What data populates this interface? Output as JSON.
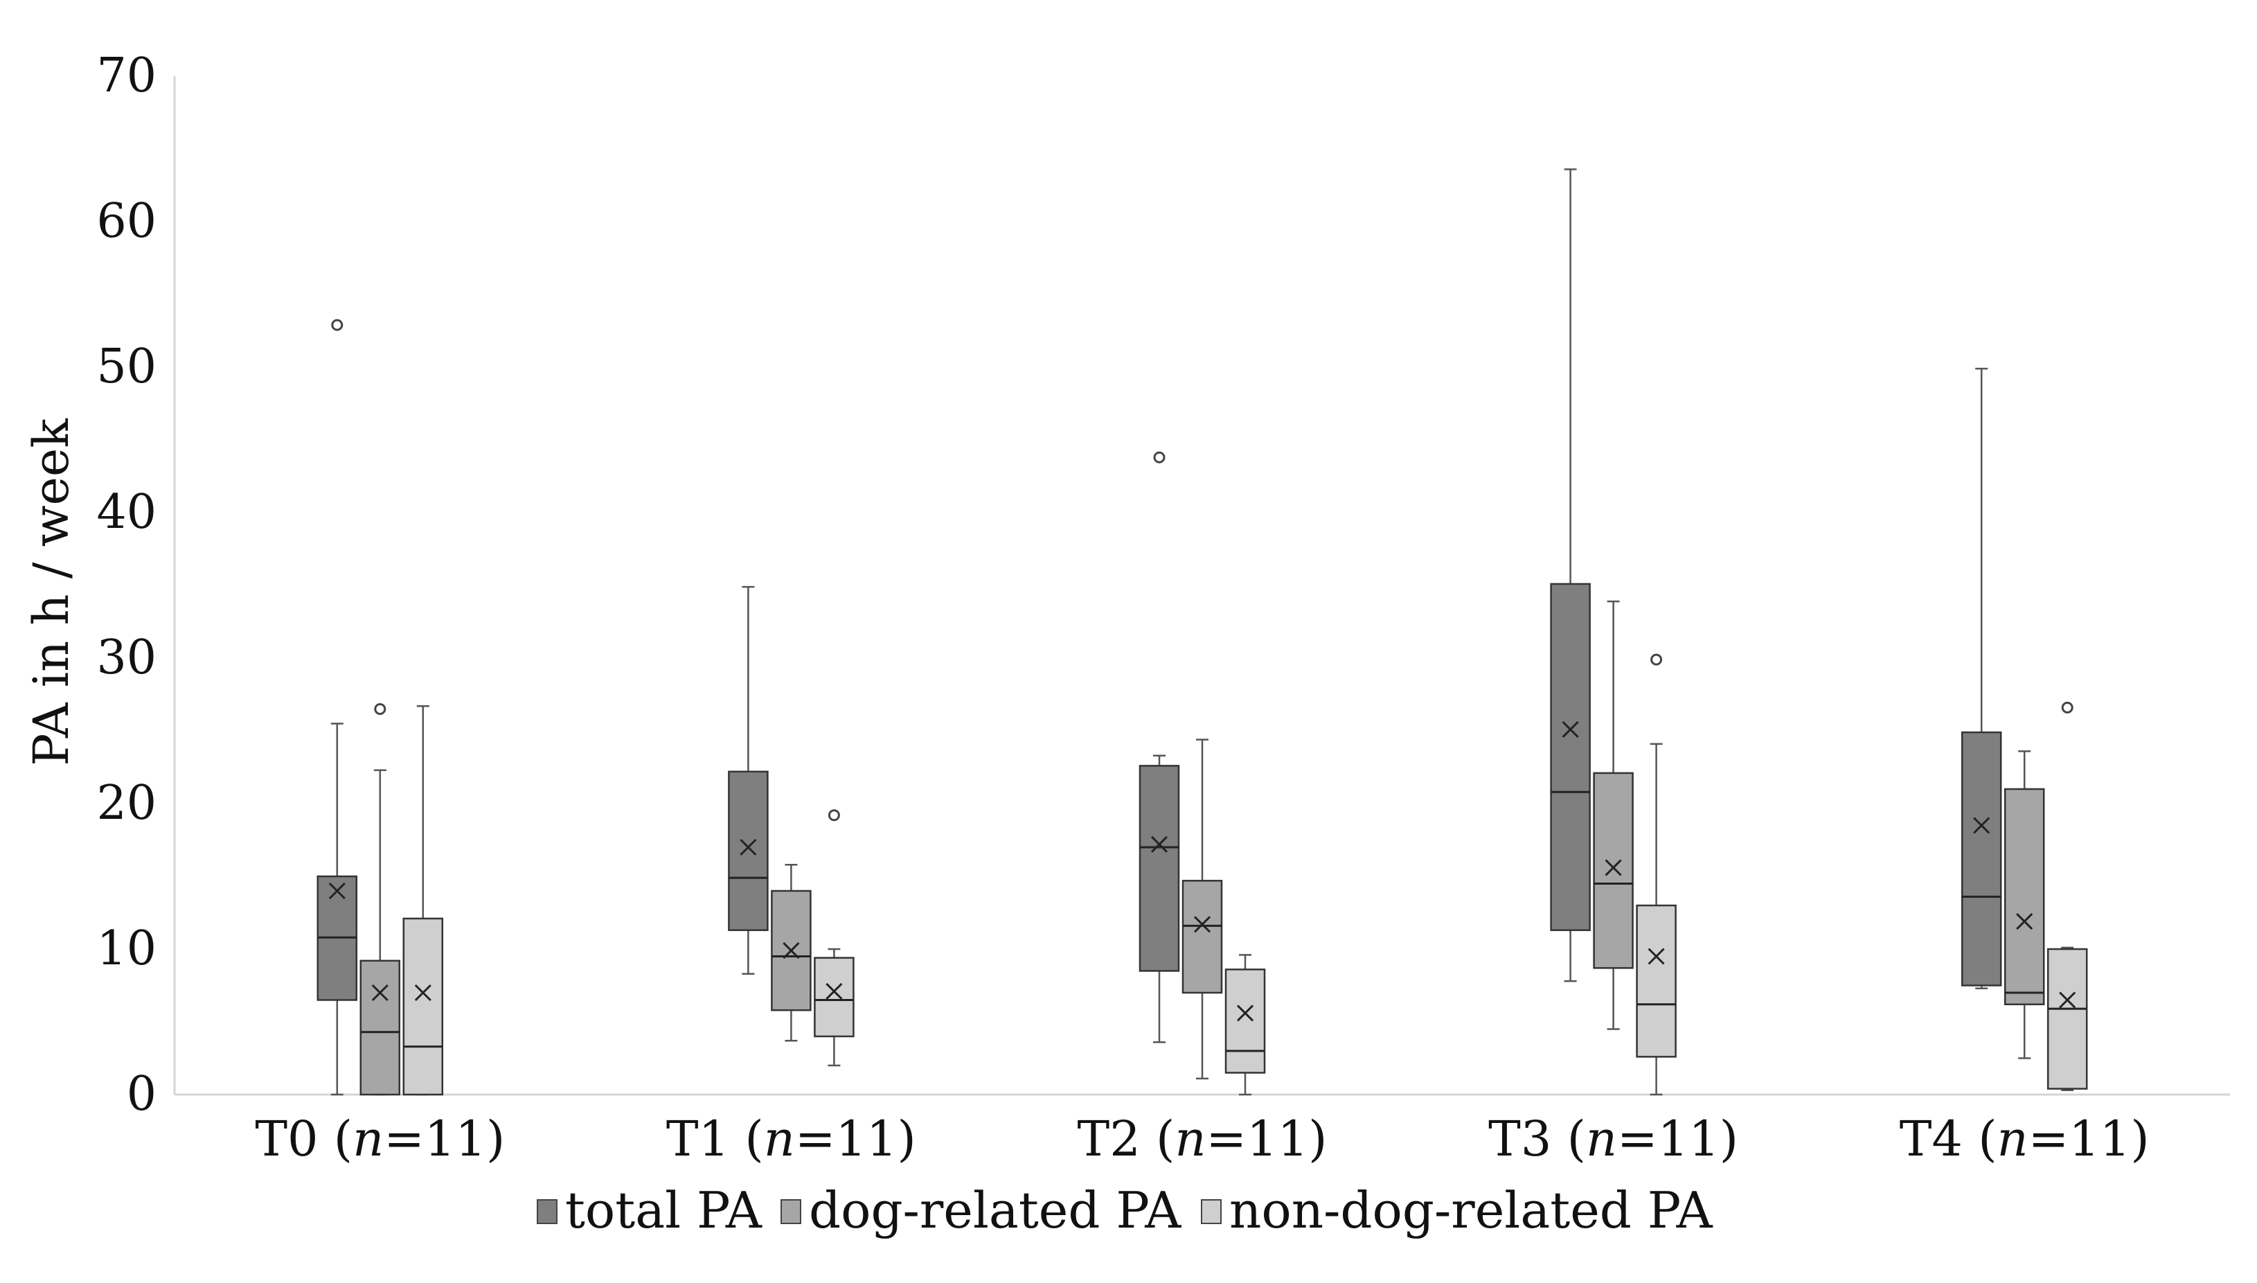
{
  "chart_data": {
    "type": "boxplot",
    "title": "",
    "ylabel": "PA in h / week",
    "xlabel": "",
    "ylim": [
      0,
      70
    ],
    "yticks": [
      0,
      10,
      20,
      30,
      40,
      50,
      60,
      70
    ],
    "grid": false,
    "legend_position": "bottom",
    "categories": [
      {
        "time": "T0",
        "n_label": "n",
        "n_value": "=11)"
      },
      {
        "time": "T1",
        "n_label": "n",
        "n_value": "=11)"
      },
      {
        "time": "T2",
        "n_label": "n",
        "n_value": "=11)"
      },
      {
        "time": "T3",
        "n_label": "n",
        "n_value": "=11)"
      },
      {
        "time": "T4",
        "n_label": "n",
        "n_value": "=11)"
      }
    ],
    "series": [
      {
        "name": "total PA",
        "color": "#7f7f7f",
        "stats": [
          {
            "min": 0,
            "q1": 6.5,
            "median": 10.8,
            "q3": 15.0,
            "max": 25.5,
            "mean": 14.0,
            "outliers": [
              52.9
            ]
          },
          {
            "min": 8.3,
            "q1": 11.3,
            "median": 14.9,
            "q3": 22.2,
            "max": 34.9,
            "mean": 17.0,
            "outliers": []
          },
          {
            "min": 3.6,
            "q1": 8.5,
            "median": 17.0,
            "q3": 22.6,
            "max": 23.3,
            "mean": 17.2,
            "outliers": [
              43.8
            ]
          },
          {
            "min": 7.8,
            "q1": 11.3,
            "median": 20.8,
            "q3": 35.1,
            "max": 63.6,
            "mean": 25.1,
            "outliers": []
          },
          {
            "min": 7.3,
            "q1": 7.5,
            "median": 13.6,
            "q3": 24.9,
            "max": 49.9,
            "mean": 18.5,
            "outliers": []
          }
        ]
      },
      {
        "name": "dog-related PA",
        "color": "#a6a6a6",
        "stats": [
          {
            "min": 0,
            "q1": 0,
            "median": 4.3,
            "q3": 9.2,
            "max": 22.3,
            "mean": 7.0,
            "outliers": [
              26.5
            ]
          },
          {
            "min": 3.7,
            "q1": 5.8,
            "median": 9.5,
            "q3": 14.0,
            "max": 15.8,
            "mean": 9.9,
            "outliers": []
          },
          {
            "min": 1.1,
            "q1": 7.0,
            "median": 11.6,
            "q3": 14.7,
            "max": 24.4,
            "mean": 11.7,
            "outliers": []
          },
          {
            "min": 4.5,
            "q1": 8.7,
            "median": 14.5,
            "q3": 22.1,
            "max": 33.9,
            "mean": 15.6,
            "outliers": []
          },
          {
            "min": 2.5,
            "q1": 6.2,
            "median": 7.0,
            "q3": 21.0,
            "max": 23.6,
            "mean": 11.9,
            "outliers": []
          }
        ]
      },
      {
        "name": "non-dog-related PA",
        "color": "#cfcfcf",
        "stats": [
          {
            "min": 0,
            "q1": 0,
            "median": 3.3,
            "q3": 12.1,
            "max": 26.7,
            "mean": 7.0,
            "outliers": []
          },
          {
            "min": 2.0,
            "q1": 4.0,
            "median": 6.5,
            "q3": 9.4,
            "max": 10.0,
            "mean": 7.1,
            "outliers": [
              19.2
            ]
          },
          {
            "min": 0,
            "q1": 1.5,
            "median": 3.0,
            "q3": 8.6,
            "max": 9.6,
            "mean": 5.6,
            "outliers": []
          },
          {
            "min": 0,
            "q1": 2.6,
            "median": 6.2,
            "q3": 13.0,
            "max": 24.1,
            "mean": 9.5,
            "outliers": [
              29.9
            ]
          },
          {
            "min": 0.3,
            "q1": 0.4,
            "median": 5.9,
            "q3": 10.0,
            "max": 10.1,
            "mean": 6.5,
            "outliers": [
              26.6
            ]
          }
        ]
      }
    ]
  }
}
